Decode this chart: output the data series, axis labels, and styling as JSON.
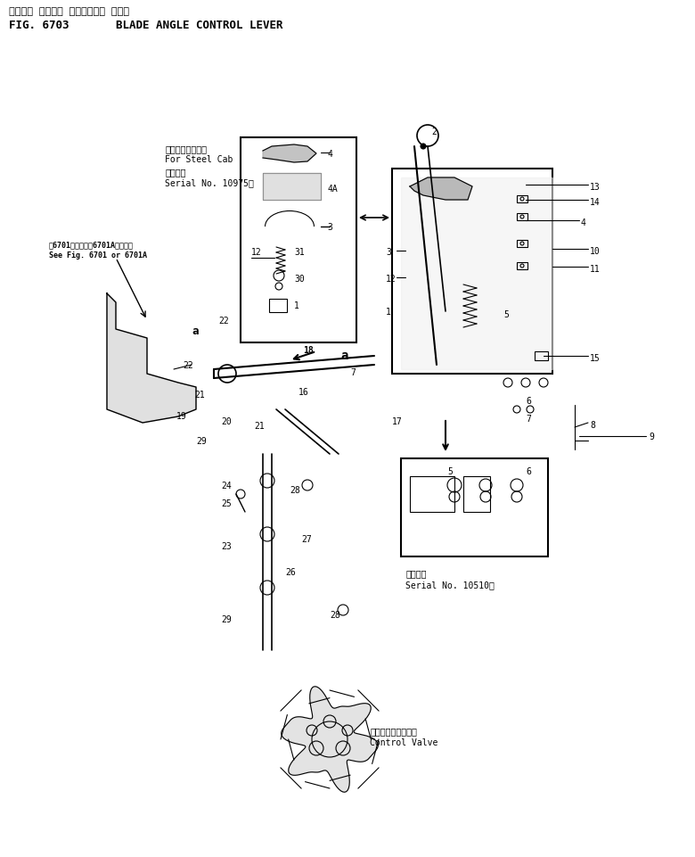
{
  "title_line1": "ブレード アングル コントロール レバー",
  "title_line2": "BLADE ANGLE CONTROL LEVER",
  "fig_label": "FIG. 6703",
  "bg_color": "#ffffff",
  "line_color": "#000000",
  "fig_width": 7.8,
  "fig_height": 9.62
}
